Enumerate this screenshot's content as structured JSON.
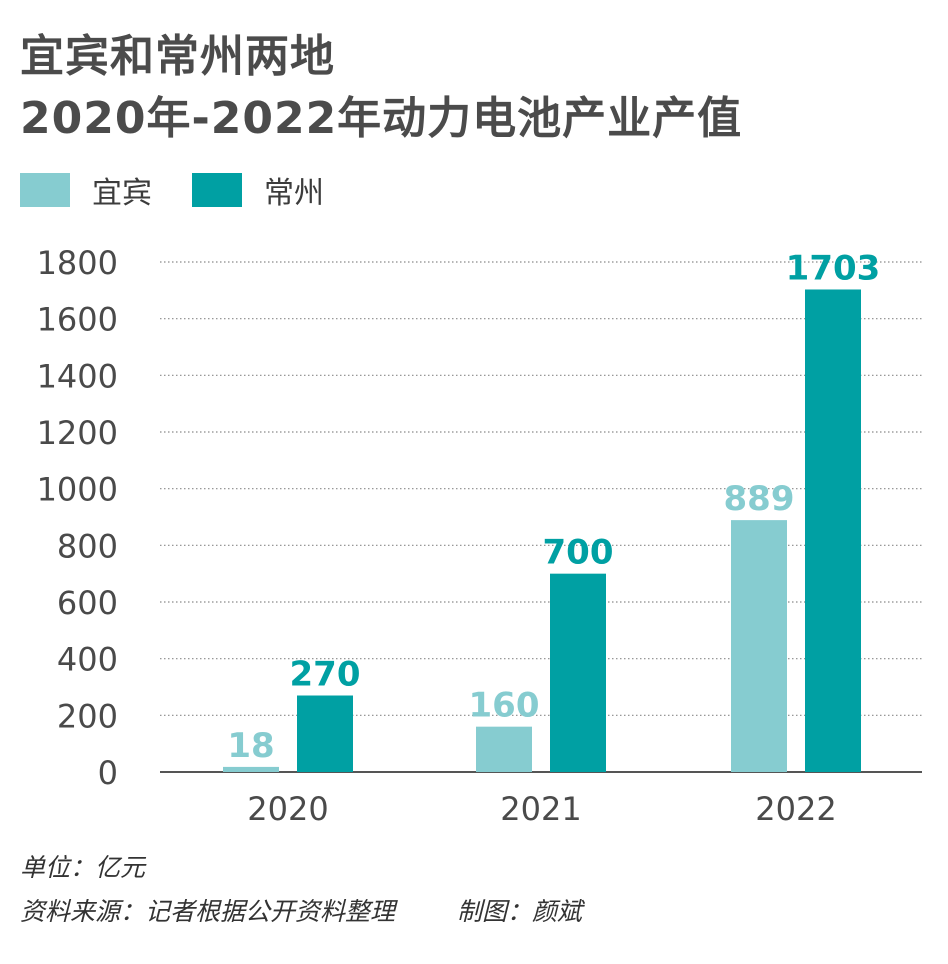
{
  "title_line1": "宜宾和常州两地",
  "title_line2": "2020年-2022年动力电池产业产值",
  "unit": "单位：亿元",
  "source": "资料来源：记者根据公开资料整理",
  "credit": "制图：颜斌",
  "colors": {
    "yibin": "#86ccd0",
    "changzhou": "#00a0a3",
    "grid": "#8a8a8a",
    "axis": "#555555"
  },
  "chart_data": {
    "type": "bar",
    "title": "宜宾和常州两地 2020年-2022年动力电池产业产值",
    "categories": [
      "2020",
      "2021",
      "2022"
    ],
    "series": [
      {
        "name": "宜宾",
        "values": [
          18,
          160,
          889
        ]
      },
      {
        "name": "常州",
        "values": [
          270,
          700,
          1703
        ]
      }
    ],
    "ylim": [
      0,
      1800
    ],
    "yticks": [
      "0",
      "200",
      "400",
      "600",
      "800",
      "1000",
      "1200",
      "1400",
      "1600",
      "1800"
    ],
    "grid": "dotted horizontal",
    "legend_position": "top-left",
    "data_labels": true
  }
}
